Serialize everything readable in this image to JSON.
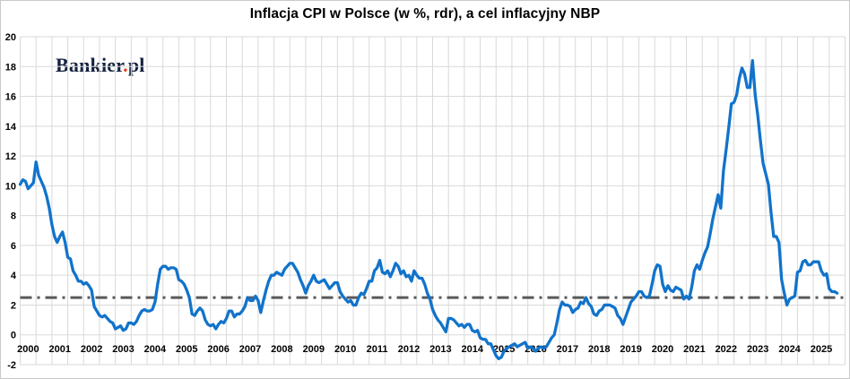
{
  "title": "Inflacja CPI w Polsce (w %, rdr), a cel inflacyjny NBP",
  "watermark": {
    "brand": "Bankier",
    "dot": ".",
    "suffix": "pl"
  },
  "chart_data": {
    "type": "line",
    "title": "Inflacja CPI w Polsce (w %, rdr), a cel inflacyjny NBP",
    "xlabel": "",
    "ylabel": "",
    "ylim": [
      -2,
      20
    ],
    "y_tick_step": 2,
    "y_tick_labels": [
      "20",
      "18",
      "16",
      "14",
      "12",
      "10",
      "8",
      "6",
      "4",
      "2",
      "0",
      "-2"
    ],
    "x_tick_labels": [
      "2000",
      "2001",
      "2002",
      "2003",
      "2004",
      "2005",
      "2006",
      "2007",
      "2008",
      "2009",
      "2010",
      "2011",
      "2012",
      "2013",
      "2014",
      "2015",
      "2016",
      "2017",
      "2018",
      "2019",
      "2020",
      "2021",
      "2022",
      "2023",
      "2024",
      "2025"
    ],
    "x_range_years": [
      2000,
      2026
    ],
    "grid": true,
    "gridline_color": "#d9d9d9",
    "legend_position": "none",
    "series": [
      {
        "name": "Inflacja CPI w Polsce (w %, rdr)",
        "color": "#1173cb",
        "frequency": "monthly",
        "start": "2000-01",
        "end": "2025-10",
        "values_by_year": {
          "2000": [
            10.1,
            10.4,
            10.3,
            9.8,
            10.0,
            10.2,
            11.6,
            10.7,
            10.3,
            9.9,
            9.3,
            8.5
          ],
          "2001": [
            7.4,
            6.6,
            6.2,
            6.6,
            6.9,
            6.2,
            5.2,
            5.1,
            4.3,
            4.0,
            3.6,
            3.6
          ],
          "2002": [
            3.4,
            3.5,
            3.3,
            3.0,
            1.9,
            1.6,
            1.3,
            1.2,
            1.3,
            1.1,
            0.9,
            0.8
          ],
          "2003": [
            0.4,
            0.5,
            0.6,
            0.3,
            0.4,
            0.8,
            0.8,
            0.7,
            0.9,
            1.3,
            1.6,
            1.7
          ],
          "2004": [
            1.6,
            1.6,
            1.7,
            2.2,
            3.4,
            4.4,
            4.6,
            4.6,
            4.4,
            4.5,
            4.5,
            4.4
          ],
          "2005": [
            3.7,
            3.6,
            3.4,
            3.0,
            2.5,
            1.4,
            1.3,
            1.6,
            1.8,
            1.6,
            1.0,
            0.7
          ],
          "2006": [
            0.6,
            0.7,
            0.4,
            0.7,
            0.9,
            0.8,
            1.1,
            1.6,
            1.6,
            1.2,
            1.4,
            1.4
          ],
          "2007": [
            1.6,
            1.9,
            2.5,
            2.3,
            2.3,
            2.6,
            2.3,
            1.5,
            2.3,
            3.0,
            3.6,
            4.0
          ],
          "2008": [
            4.0,
            4.2,
            4.1,
            4.0,
            4.4,
            4.6,
            4.8,
            4.8,
            4.5,
            4.2,
            3.7,
            3.3
          ],
          "2009": [
            2.8,
            3.3,
            3.6,
            4.0,
            3.6,
            3.5,
            3.6,
            3.7,
            3.4,
            3.1,
            3.3,
            3.5
          ],
          "2010": [
            3.5,
            2.9,
            2.6,
            2.4,
            2.2,
            2.3,
            2.0,
            2.0,
            2.5,
            2.8,
            2.7,
            3.1
          ],
          "2011": [
            3.6,
            3.6,
            4.3,
            4.5,
            5.0,
            4.2,
            4.1,
            4.3,
            3.9,
            4.3,
            4.8,
            4.6
          ],
          "2012": [
            4.1,
            4.3,
            3.9,
            4.0,
            3.6,
            4.3,
            4.0,
            3.8,
            3.8,
            3.4,
            2.8,
            2.4
          ],
          "2013": [
            1.7,
            1.3,
            1.0,
            0.8,
            0.5,
            0.2,
            1.1,
            1.1,
            1.0,
            0.8,
            0.6,
            0.7
          ],
          "2014": [
            0.5,
            0.7,
            0.7,
            0.3,
            0.2,
            0.3,
            -0.2,
            -0.3,
            -0.3,
            -0.6,
            -0.6,
            -1.0
          ],
          "2015": [
            -1.4,
            -1.6,
            -1.5,
            -1.1,
            -0.9,
            -0.8,
            -0.7,
            -0.6,
            -0.8,
            -0.7,
            -0.6,
            -0.5
          ],
          "2016": [
            -0.9,
            -0.8,
            -0.9,
            -1.1,
            -0.9,
            -0.8,
            -0.9,
            -0.8,
            -0.5,
            -0.2,
            0.0,
            0.8
          ],
          "2017": [
            1.7,
            2.2,
            2.0,
            2.0,
            1.9,
            1.5,
            1.7,
            1.8,
            2.2,
            2.1,
            2.5,
            2.1
          ],
          "2018": [
            1.9,
            1.4,
            1.3,
            1.6,
            1.7,
            2.0,
            2.0,
            2.0,
            1.9,
            1.8,
            1.3,
            1.1
          ],
          "2019": [
            0.7,
            1.2,
            1.7,
            2.2,
            2.4,
            2.6,
            2.9,
            2.9,
            2.6,
            2.5,
            2.6,
            3.4
          ],
          "2020": [
            4.3,
            4.7,
            4.6,
            3.4,
            2.9,
            3.3,
            3.0,
            2.9,
            3.2,
            3.1,
            3.0,
            2.4
          ],
          "2021": [
            2.6,
            2.4,
            3.2,
            4.3,
            4.7,
            4.4,
            5.0,
            5.5,
            5.9,
            6.8,
            7.8,
            8.6
          ],
          "2022": [
            9.4,
            8.5,
            11.0,
            12.4,
            13.9,
            15.5,
            15.6,
            16.1,
            17.2,
            17.9,
            17.5,
            16.6
          ],
          "2023": [
            16.6,
            18.4,
            16.1,
            14.7,
            13.0,
            11.5,
            10.8,
            10.1,
            8.2,
            6.6,
            6.6,
            6.2
          ],
          "2024": [
            3.7,
            2.8,
            2.0,
            2.4,
            2.5,
            2.6,
            4.2,
            4.3,
            4.9,
            5.0,
            4.7,
            4.7
          ],
          "2025": [
            4.9,
            4.9,
            4.9,
            4.3,
            4.0,
            4.1,
            3.1,
            2.9,
            2.9,
            2.8
          ]
        }
      }
    ],
    "target_line": {
      "name": "cel inflacyjny NBP",
      "value": 2.5,
      "color": "#595959",
      "style": "dash-dot"
    }
  }
}
